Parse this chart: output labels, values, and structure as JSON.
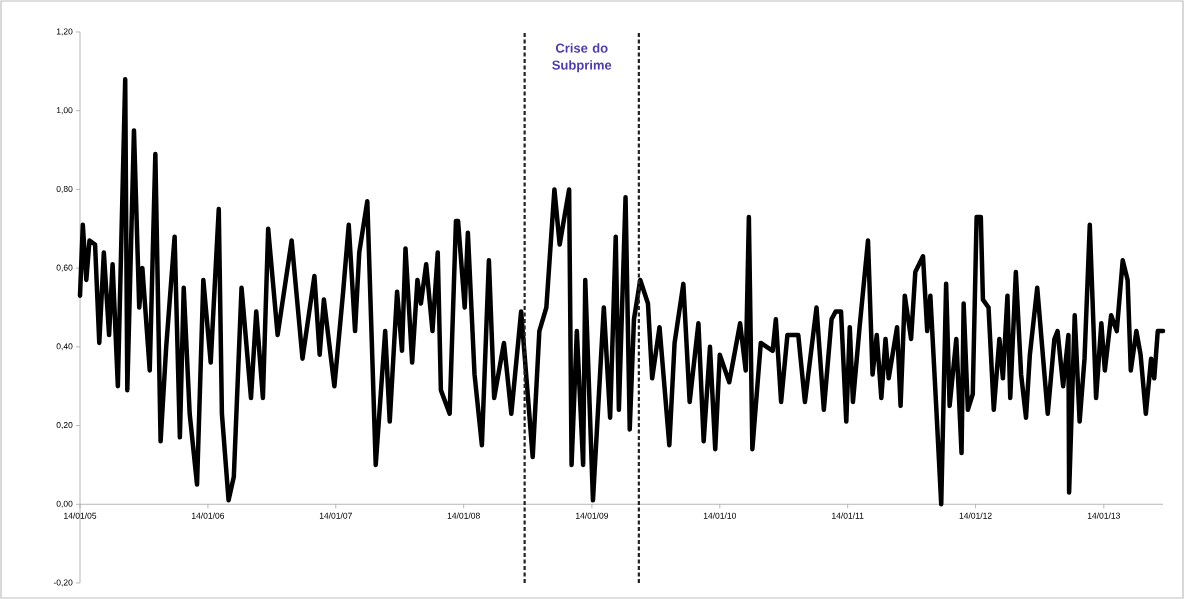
{
  "chart_data": {
    "type": "line",
    "x": [
      "2005-01-14",
      "2005-01-22",
      "2005-02-01",
      "2005-02-10",
      "2005-02-26",
      "2005-03-10",
      "2005-03-23",
      "2005-04-07",
      "2005-04-17",
      "2005-05-02",
      "2005-05-23",
      "2005-05-29",
      "2005-06-17",
      "2005-07-02",
      "2005-07-11",
      "2005-08-01",
      "2005-08-17",
      "2005-09-01",
      "2005-09-17",
      "2005-10-11",
      "2005-10-26",
      "2005-11-06",
      "2005-11-23",
      "2005-12-14",
      "2006-01-01",
      "2006-01-22",
      "2006-02-14",
      "2006-02-23",
      "2006-03-14",
      "2006-03-29",
      "2006-04-20",
      "2006-05-17",
      "2006-06-01",
      "2006-06-20",
      "2006-07-05",
      "2006-08-01",
      "2006-09-10",
      "2006-10-11",
      "2006-11-14",
      "2006-11-29",
      "2006-12-11",
      "2007-01-10",
      "2007-02-04",
      "2007-02-20",
      "2007-03-10",
      "2007-03-22",
      "2007-04-14",
      "2007-05-08",
      "2007-06-04",
      "2007-06-17",
      "2007-07-08",
      "2007-07-22",
      "2007-08-01",
      "2007-08-20",
      "2007-09-04",
      "2007-09-14",
      "2007-09-29",
      "2007-10-17",
      "2007-11-01",
      "2007-11-10",
      "2007-12-05",
      "2007-12-23",
      "2007-12-29",
      "2008-01-17",
      "2008-01-26",
      "2008-02-14",
      "2008-03-06",
      "2008-03-26",
      "2008-04-10",
      "2008-05-08",
      "2008-05-29",
      "2008-06-26",
      "2008-07-29",
      "2008-08-17",
      "2008-09-06",
      "2008-09-29",
      "2008-10-14",
      "2008-11-10",
      "2008-11-17",
      "2008-12-02",
      "2008-12-20",
      "2008-12-26",
      "2009-01-17",
      "2009-02-17",
      "2009-03-07",
      "2009-03-23",
      "2009-04-01",
      "2009-04-20",
      "2009-05-02",
      "2009-05-14",
      "2009-06-01",
      "2009-06-23",
      "2009-07-05",
      "2009-07-26",
      "2009-08-23",
      "2009-09-07",
      "2009-10-02",
      "2009-10-20",
      "2009-11-14",
      "2009-11-29",
      "2009-12-17",
      "2010-01-01",
      "2010-01-14",
      "2010-02-10",
      "2010-03-13",
      "2010-03-29",
      "2010-04-07",
      "2010-04-17",
      "2010-05-11",
      "2010-06-14",
      "2010-06-23",
      "2010-07-08",
      "2010-07-26",
      "2010-08-26",
      "2010-09-14",
      "2010-10-17",
      "2010-11-07",
      "2010-11-29",
      "2010-12-11",
      "2010-12-26",
      "2011-01-10",
      "2011-01-20",
      "2011-01-29",
      "2011-02-17",
      "2011-03-13",
      "2011-03-26",
      "2011-04-07",
      "2011-04-20",
      "2011-05-02",
      "2011-05-11",
      "2011-06-04",
      "2011-06-14",
      "2011-06-26",
      "2011-07-14",
      "2011-07-26",
      "2011-08-17",
      "2011-08-29",
      "2011-09-07",
      "2011-09-23",
      "2011-10-08",
      "2011-10-22",
      "2011-11-01",
      "2011-11-20",
      "2011-12-05",
      "2011-12-11",
      "2011-12-23",
      "2012-01-06",
      "2012-01-17",
      "2012-01-29",
      "2012-02-04",
      "2012-02-20",
      "2012-03-06",
      "2012-03-22",
      "2012-04-01",
      "2012-04-14",
      "2012-04-22",
      "2012-05-08",
      "2012-05-23",
      "2012-06-06",
      "2012-06-17",
      "2012-07-08",
      "2012-08-07",
      "2012-08-26",
      "2012-09-04",
      "2012-09-20",
      "2012-10-05",
      "2012-10-07",
      "2012-10-23",
      "2012-11-06",
      "2012-11-20",
      "2012-12-05",
      "2012-12-23",
      "2013-01-07",
      "2013-01-17",
      "2013-02-04",
      "2013-02-20",
      "2013-03-09",
      "2013-03-23",
      "2013-04-01",
      "2013-04-17",
      "2013-04-29",
      "2013-05-14",
      "2013-05-29",
      "2013-06-07",
      "2013-06-17",
      "2013-07-02"
    ],
    "series": [
      {
        "color": "#000000",
        "values": [
          0.53,
          0.71,
          0.57,
          0.67,
          0.66,
          0.41,
          0.64,
          0.43,
          0.61,
          0.3,
          1.08,
          0.29,
          0.95,
          0.5,
          0.6,
          0.34,
          0.89,
          0.16,
          0.4,
          0.68,
          0.17,
          0.55,
          0.23,
          0.05,
          0.57,
          0.36,
          0.75,
          0.23,
          0.01,
          0.07,
          0.55,
          0.27,
          0.49,
          0.27,
          0.7,
          0.43,
          0.67,
          0.37,
          0.58,
          0.38,
          0.52,
          0.3,
          0.54,
          0.71,
          0.44,
          0.64,
          0.77,
          0.1,
          0.44,
          0.21,
          0.54,
          0.39,
          0.65,
          0.36,
          0.57,
          0.51,
          0.61,
          0.44,
          0.64,
          0.29,
          0.23,
          0.72,
          0.72,
          0.5,
          0.69,
          0.33,
          0.15,
          0.62,
          0.27,
          0.41,
          0.23,
          0.49,
          0.12,
          0.44,
          0.5,
          0.8,
          0.66,
          0.8,
          0.1,
          0.44,
          0.1,
          0.57,
          0.01,
          0.5,
          0.22,
          0.68,
          0.24,
          0.78,
          0.19,
          0.47,
          0.57,
          0.51,
          0.32,
          0.45,
          0.15,
          0.41,
          0.56,
          0.26,
          0.46,
          0.16,
          0.4,
          0.14,
          0.38,
          0.31,
          0.46,
          0.34,
          0.73,
          0.14,
          0.41,
          0.39,
          0.47,
          0.26,
          0.43,
          0.43,
          0.26,
          0.5,
          0.24,
          0.47,
          0.49,
          0.49,
          0.21,
          0.45,
          0.26,
          0.45,
          0.67,
          0.33,
          0.43,
          0.27,
          0.42,
          0.32,
          0.45,
          0.25,
          0.53,
          0.42,
          0.59,
          0.63,
          0.44,
          0.53,
          0.26,
          0.0,
          0.56,
          0.25,
          0.42,
          0.13,
          0.51,
          0.24,
          0.28,
          0.73,
          0.73,
          0.52,
          0.5,
          0.24,
          0.42,
          0.32,
          0.53,
          0.27,
          0.59,
          0.33,
          0.22,
          0.38,
          0.55,
          0.23,
          0.42,
          0.44,
          0.3,
          0.43,
          0.03,
          0.48,
          0.21,
          0.37,
          0.71,
          0.27,
          0.46,
          0.34,
          0.48,
          0.44,
          0.62,
          0.57,
          0.34,
          0.44,
          0.38,
          0.23,
          0.37,
          0.32,
          0.44,
          0.44
        ]
      }
    ],
    "xlim": [
      "2005-01-14",
      "2013-07-02"
    ],
    "xticks": [
      {
        "value": "2005-01-14",
        "label": "14/01/05"
      },
      {
        "value": "2006-01-14",
        "label": "14/01/06"
      },
      {
        "value": "2007-01-14",
        "label": "14/01/07"
      },
      {
        "value": "2008-01-14",
        "label": "14/01/08"
      },
      {
        "value": "2009-01-14",
        "label": "14/01/09"
      },
      {
        "value": "2010-01-14",
        "label": "14/01/10"
      },
      {
        "value": "2011-01-14",
        "label": "14/01/11"
      },
      {
        "value": "2012-01-14",
        "label": "14/01/12"
      },
      {
        "value": "2013-01-14",
        "label": "14/01/13"
      }
    ],
    "ylim": [
      -0.2,
      1.2
    ],
    "yticks": [
      {
        "value": -0.2,
        "label": "-0,20"
      },
      {
        "value": 0,
        "label": "0,00"
      },
      {
        "value": 0.2,
        "label": "0,20"
      },
      {
        "value": 0.4,
        "label": "0,40"
      },
      {
        "value": 0.6,
        "label": "0,60"
      },
      {
        "value": 0.8,
        "label": "0,80"
      },
      {
        "value": 1.0,
        "label": "1,00"
      },
      {
        "value": 1.2,
        "label": "1,20"
      }
    ],
    "ref_lines": [
      {
        "axis": "x",
        "value": "2008-07-06",
        "color": "#222222",
        "line_style": "dashed"
      },
      {
        "axis": "x",
        "value": "2009-05-28",
        "color": "#222222",
        "line_style": "dashed"
      }
    ],
    "annotations": [
      "Crise do Subprime"
    ]
  }
}
